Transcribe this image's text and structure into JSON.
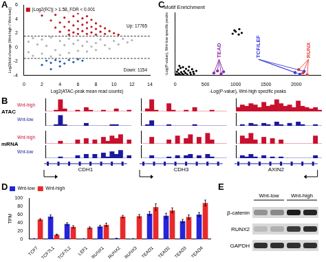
{
  "chart_data": [
    {
      "panel": "A",
      "type": "scatter",
      "x_label": "Log2(ATAC-peak mean read counts)",
      "y_label": "Log2(fold change (Wnt-high / Wnt-low))",
      "xlim": [
        0,
        14
      ],
      "xticks": [
        0,
        2,
        4,
        6,
        8,
        10,
        12,
        14
      ],
      "ylim": [
        -4,
        6
      ],
      "yticks": [
        -4,
        -2,
        0,
        2,
        4,
        6
      ],
      "grid": false,
      "thresholds": [
        1.58,
        -1.58
      ],
      "annotations": [
        {
          "text": "|Log2(FC)| > 1.58, FDR < 0.001",
          "color": "#c0141e"
        },
        {
          "text": "Up: 17765"
        },
        {
          "text": "Down: 1154"
        }
      ],
      "series": [
        {
          "color": "#b3b3b3",
          "values": [
            [
              0.5,
              0.8
            ],
            [
              0.5,
              -0.7
            ],
            [
              1,
              1.3
            ],
            [
              1,
              -1.2
            ],
            [
              1.5,
              0.4
            ],
            [
              2,
              -0.9
            ],
            [
              2,
              1.1
            ],
            [
              2.5,
              0.2
            ],
            [
              3,
              -1.3
            ],
            [
              3,
              1.4
            ],
            [
              3.5,
              -0.4
            ],
            [
              4,
              0.9
            ],
            [
              4,
              -1.1
            ],
            [
              4.5,
              0.3
            ],
            [
              5,
              1.2
            ],
            [
              5,
              -0.8
            ],
            [
              5.5,
              0.5
            ],
            [
              6,
              -0.5
            ],
            [
              6,
              1
            ],
            [
              6.5,
              0.2
            ],
            [
              7,
              -0.6
            ],
            [
              7,
              0.8
            ],
            [
              7.5,
              0.1
            ],
            [
              8,
              0.6
            ],
            [
              8,
              -0.4
            ],
            [
              8.5,
              1.1
            ],
            [
              9,
              0.3
            ],
            [
              9.5,
              -0.2
            ],
            [
              10,
              0.9
            ],
            [
              10.5,
              0.4
            ],
            [
              11,
              1.2
            ],
            [
              11.5,
              0.7
            ],
            [
              12,
              1
            ]
          ]
        },
        {
          "color": "#c0141e",
          "values": [
            [
              2,
              4.5
            ],
            [
              2.5,
              5.2
            ],
            [
              3,
              5.5
            ],
            [
              3,
              3.8
            ],
            [
              3.5,
              4.6
            ],
            [
              3.5,
              2.8
            ],
            [
              4,
              5.3
            ],
            [
              4,
              3.5
            ],
            [
              4,
              2.2
            ],
            [
              4.5,
              4.2
            ],
            [
              4.5,
              2.9
            ],
            [
              5,
              5
            ],
            [
              5,
              3.6
            ],
            [
              5,
              2.4
            ],
            [
              5,
              1.8
            ],
            [
              5.5,
              4.4
            ],
            [
              5.5,
              3.1
            ],
            [
              5.5,
              2.1
            ],
            [
              6,
              4.8
            ],
            [
              6,
              3.7
            ],
            [
              6,
              2.6
            ],
            [
              6,
              1.9
            ],
            [
              6.5,
              4.1
            ],
            [
              6.5,
              3.2
            ],
            [
              6.5,
              2.3
            ],
            [
              7,
              4.4
            ],
            [
              7,
              3.5
            ],
            [
              7,
              2.7
            ],
            [
              7,
              1.9
            ],
            [
              7.5,
              3.9
            ],
            [
              7.5,
              2.9
            ],
            [
              7.5,
              2.1
            ],
            [
              8,
              3.4
            ],
            [
              8,
              2.6
            ],
            [
              8,
              1.8
            ],
            [
              8.5,
              3
            ],
            [
              8.5,
              2.2
            ],
            [
              9,
              2.7
            ],
            [
              9,
              1.9
            ],
            [
              9.5,
              2.3
            ],
            [
              10,
              2
            ],
            [
              10.5,
              1.8
            ]
          ]
        },
        {
          "color": "#2a5fbf",
          "values": [
            [
              2,
              -2.5
            ],
            [
              2.5,
              -1.9
            ],
            [
              3,
              -3.1
            ],
            [
              3,
              -2.2
            ],
            [
              3.5,
              -1.8
            ],
            [
              4,
              -2.7
            ],
            [
              4,
              -2
            ],
            [
              4.5,
              -2.3
            ],
            [
              5,
              -1.8
            ],
            [
              5.5,
              -2.1
            ],
            [
              6,
              -1.7
            ],
            [
              6.5,
              -1.9
            ]
          ]
        }
      ]
    },
    {
      "panel": "C",
      "type": "scatter",
      "title": "Motif Enrichment",
      "x_label": "-Log(P-value), Wnt-high specific peaks",
      "y_label": "-Log(P-value), Wnt-low specific peaks",
      "xlim": [
        0,
        2400
      ],
      "xticks": [
        0,
        500,
        1000,
        1500,
        2000
      ],
      "ylim": [
        0,
        1500
      ],
      "tick_labels": "x",
      "grid": false,
      "series": [
        {
          "color": "#000000",
          "values": [
            [
              0,
              0
            ],
            [
              20,
              30
            ],
            [
              40,
              10
            ],
            [
              60,
              50
            ],
            [
              80,
              20
            ],
            [
              100,
              80
            ],
            [
              120,
              40
            ],
            [
              150,
              100
            ],
            [
              170,
              60
            ],
            [
              200,
              30
            ],
            [
              220,
              120
            ],
            [
              250,
              70
            ],
            [
              280,
              150
            ],
            [
              300,
              90
            ],
            [
              50,
              140
            ],
            [
              90,
              180
            ],
            [
              130,
              200
            ],
            [
              180,
              160
            ],
            [
              230,
              210
            ],
            [
              30,
              90
            ],
            [
              260,
              20
            ],
            [
              310,
              40
            ],
            [
              350,
              110
            ],
            [
              140,
              10
            ],
            [
              70,
              230
            ],
            [
              950,
              1000
            ],
            [
              1000,
              1050
            ],
            [
              1050,
              980
            ],
            [
              1100,
              1020
            ],
            [
              980,
              1080
            ],
            [
              1060,
              1110
            ]
          ]
        },
        {
          "name": "TEAD",
          "color": "#8e2fa8",
          "values": [
            [
              640,
              60
            ],
            [
              700,
              110
            ],
            [
              760,
              40
            ],
            [
              800,
              90
            ]
          ]
        },
        {
          "name": "TCF/LEF",
          "color": "#3b3bdc",
          "values": [
            [
              1980,
              70
            ],
            [
              2060,
              30
            ],
            [
              2130,
              100
            ]
          ]
        },
        {
          "name": "RUNX",
          "color": "#e8433a",
          "values": [
            [
              2040,
              140
            ],
            [
              2110,
              60
            ],
            [
              2180,
              20
            ]
          ]
        }
      ]
    },
    {
      "panel": "B",
      "type": "tracks",
      "ylim": [
        0,
        1
      ],
      "tick_labels": false,
      "assays": [
        "ATAC",
        "mRNA"
      ],
      "conditions": [
        {
          "name": "Wnt-high",
          "color": "#c8102e"
        },
        {
          "name": "Wnt-low",
          "color": "#1a1a9c"
        }
      ],
      "genes": [
        {
          "name": "CDH1",
          "direction": "right",
          "tracks": [
            [
              0,
              0,
              0.1,
              0.9,
              0.2,
              0,
              0,
              0.1,
              0,
              0.3,
              0.1,
              0,
              0,
              0.1,
              0,
              0,
              0.2,
              0,
              0,
              0.1
            ],
            [
              0,
              0,
              0.1,
              0.8,
              0.1,
              0,
              0,
              0,
              0,
              0.2,
              0,
              0,
              0,
              0,
              0,
              0.1,
              0.1,
              0,
              0,
              0
            ],
            [
              0,
              0,
              0,
              0.2,
              0,
              0,
              0,
              0.3,
              0,
              0.4,
              0,
              0.3,
              0,
              0.5,
              0.2,
              0.6,
              0.4,
              0.7,
              0,
              0.3
            ],
            [
              0,
              0,
              0,
              0.1,
              0,
              0,
              0,
              0.2,
              0,
              0.3,
              0,
              0.3,
              0,
              0.4,
              0.1,
              0.5,
              0.3,
              0.6,
              0,
              0.2
            ]
          ]
        },
        {
          "name": "CDH3",
          "direction": "right",
          "tracks": [
            [
              0,
              0.2,
              0.9,
              0.1,
              0,
              0,
              0.6,
              0.1,
              0,
              0,
              0.1,
              0,
              0.3,
              0,
              0,
              0,
              0.1,
              0,
              0,
              0
            ],
            [
              0,
              0.1,
              0.4,
              0,
              0,
              0,
              0.1,
              0,
              0,
              0,
              0,
              0,
              0.1,
              0,
              0,
              0,
              0,
              0,
              0,
              0
            ],
            [
              0,
              0,
              0.5,
              0,
              0,
              0,
              0.3,
              0,
              0.6,
              0,
              0.4,
              0.7,
              0,
              0.5,
              0,
              0.8,
              0.3,
              0,
              0,
              0
            ],
            [
              0,
              0,
              0.2,
              0,
              0,
              0,
              0.1,
              0,
              0.2,
              0,
              0.2,
              0.3,
              0,
              0.2,
              0,
              0.3,
              0.1,
              0,
              0,
              0
            ]
          ]
        },
        {
          "name": "AXIN2",
          "direction": "left",
          "tracks": [
            [
              0.3,
              0.5,
              0.4,
              0.6,
              0.5,
              0.3,
              0.7,
              0.4,
              0.5,
              0.9,
              0.6,
              0.4,
              0.5,
              0.3,
              0.8,
              0.4,
              0.3,
              0.2,
              0.3,
              0.1
            ],
            [
              0,
              0.1,
              0,
              0.2,
              0.1,
              0,
              0.2,
              0.1,
              0,
              0.3,
              0.1,
              0,
              0.2,
              0,
              0.3,
              0.1,
              0,
              0,
              0.1,
              0
            ],
            [
              0,
              0.6,
              0.4,
              0.8,
              0.3,
              0,
              0.5,
              0,
              0.4,
              0,
              0.3,
              0,
              0,
              0,
              0,
              0,
              0,
              0,
              0.6,
              0
            ],
            [
              0,
              0.2,
              0.1,
              0.3,
              0.1,
              0,
              0.2,
              0,
              0.1,
              0,
              0.1,
              0,
              0,
              0,
              0,
              0,
              0,
              0,
              0.2,
              0
            ]
          ]
        }
      ]
    },
    {
      "panel": "D",
      "type": "bar",
      "y_label": "TPM",
      "categories": [
        "TCF7",
        "TCF7L1",
        "TCF7L2",
        "LEF1",
        "RUNX1",
        "RUNX2",
        "RUNX3",
        "TEAD1",
        "TEAD2",
        "TEAD3",
        "TEAD4"
      ],
      "ylim": [
        0,
        100
      ],
      "yticks": [
        0,
        20,
        40,
        60,
        80,
        100
      ],
      "legend": "top-left",
      "grid": false,
      "series": [
        {
          "name": "Wnt-low",
          "color": "#2424d8",
          "values": [
            1,
            55,
            37,
            1,
            31,
            2,
            1,
            62,
            57,
            44,
            60
          ],
          "errors": [
            0.3,
            4,
            3,
            0.3,
            3,
            0.5,
            0.3,
            5,
            6,
            4,
            5
          ]
        },
        {
          "name": "Wnt-high",
          "color": "#e82a2a",
          "values": [
            48,
            11,
            30,
            28,
            35,
            55,
            56,
            78,
            70,
            54,
            88
          ],
          "errors": [
            2,
            1.5,
            3,
            2,
            4,
            3,
            4,
            8,
            6,
            5,
            7
          ]
        }
      ]
    },
    {
      "panel": "E",
      "type": "blot",
      "groups": [
        {
          "label": "Wnt-low",
          "lanes": 2
        },
        {
          "label": "Wnt-high",
          "lanes": 2
        }
      ],
      "rows": [
        {
          "label": "β-catenin",
          "values": [
            0.35,
            0.4,
            0.95,
            0.9
          ]
        },
        {
          "label": "RUNX2",
          "values": [
            0.15,
            0.2,
            0.8,
            0.85
          ]
        },
        {
          "label": "GAPDH",
          "values": [
            0.85,
            0.85,
            0.85,
            0.85
          ]
        }
      ]
    }
  ]
}
